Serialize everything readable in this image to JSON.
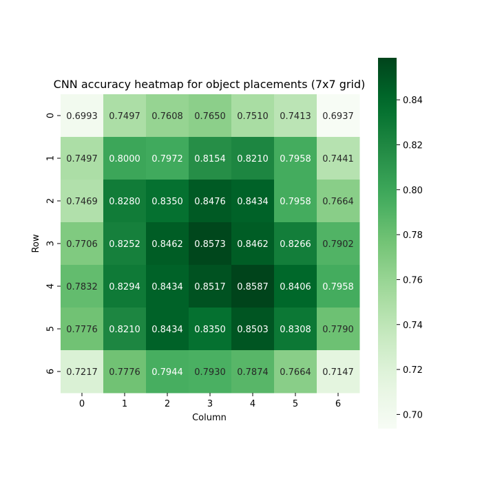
{
  "chart_data": {
    "type": "heatmap",
    "title": "CNN accuracy heatmap for object placements (7x7 grid)",
    "xlabel": "Column",
    "ylabel": "Row",
    "x_ticks": [
      "0",
      "1",
      "2",
      "3",
      "4",
      "5",
      "6"
    ],
    "y_ticks": [
      "0",
      "1",
      "2",
      "3",
      "4",
      "5",
      "6"
    ],
    "values": [
      [
        0.6993,
        0.7497,
        0.7608,
        0.765,
        0.751,
        0.7413,
        0.6937
      ],
      [
        0.7497,
        0.8,
        0.7972,
        0.8154,
        0.821,
        0.7958,
        0.7441
      ],
      [
        0.7469,
        0.828,
        0.835,
        0.8476,
        0.8434,
        0.7958,
        0.7664
      ],
      [
        0.7706,
        0.8252,
        0.8462,
        0.8573,
        0.8462,
        0.8266,
        0.7902
      ],
      [
        0.7832,
        0.8294,
        0.8434,
        0.8517,
        0.8587,
        0.8406,
        0.7958
      ],
      [
        0.7776,
        0.821,
        0.8434,
        0.835,
        0.8503,
        0.8308,
        0.779
      ],
      [
        0.7217,
        0.7776,
        0.7944,
        0.793,
        0.7874,
        0.7664,
        0.7147
      ]
    ],
    "colorbar": {
      "cmap": "Greens",
      "vmin": 0.6937,
      "vmax": 0.8587,
      "ticks": [
        0.7,
        0.72,
        0.74,
        0.76,
        0.78,
        0.8,
        0.82,
        0.84
      ],
      "tick_labels": [
        "0.70",
        "0.72",
        "0.74",
        "0.76",
        "0.78",
        "0.80",
        "0.82",
        "0.84"
      ]
    },
    "annotations": true,
    "grid": false
  }
}
